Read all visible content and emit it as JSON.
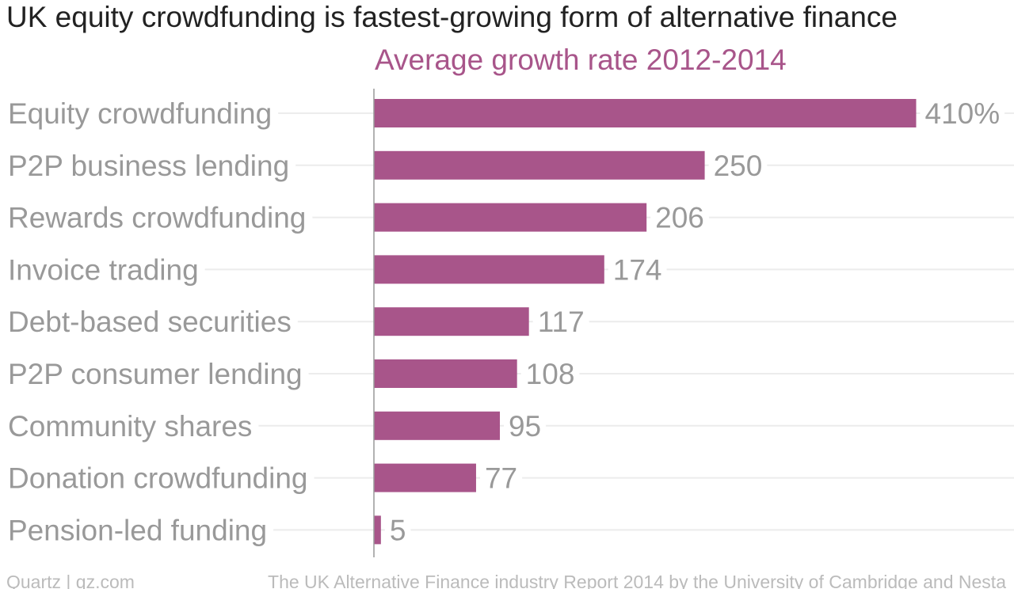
{
  "colors": {
    "bar": "#a8558a",
    "subtitle": "#a8558a",
    "title": "#222222",
    "label": "#999999",
    "footer": "#bbbbbb",
    "grid": "#ececec"
  },
  "footer": {
    "credit": "Quartz | qz.com",
    "source": "The UK Alternative Finance industry Report 2014 by the University of Cambridge and Nesta"
  },
  "chart_data": {
    "type": "bar",
    "orientation": "horizontal",
    "title": "UK equity crowdfunding is fastest-growing form of alternative finance",
    "subtitle": "Average growth rate 2012-2014",
    "categories": [
      "Equity crowdfunding",
      "P2P business lending",
      "Rewards crowdfunding",
      "Invoice trading",
      "Debt-based securities",
      "P2P consumer lending",
      "Community shares",
      "Donation crowdfunding",
      "Pension-led funding"
    ],
    "values": [
      410,
      250,
      206,
      174,
      117,
      108,
      95,
      77,
      5
    ],
    "value_labels": [
      "410%",
      "250",
      "206",
      "174",
      "117",
      "108",
      "95",
      "77",
      "5"
    ],
    "unit": "%",
    "xlim": [
      0,
      410
    ],
    "grid": true,
    "legend": false
  }
}
